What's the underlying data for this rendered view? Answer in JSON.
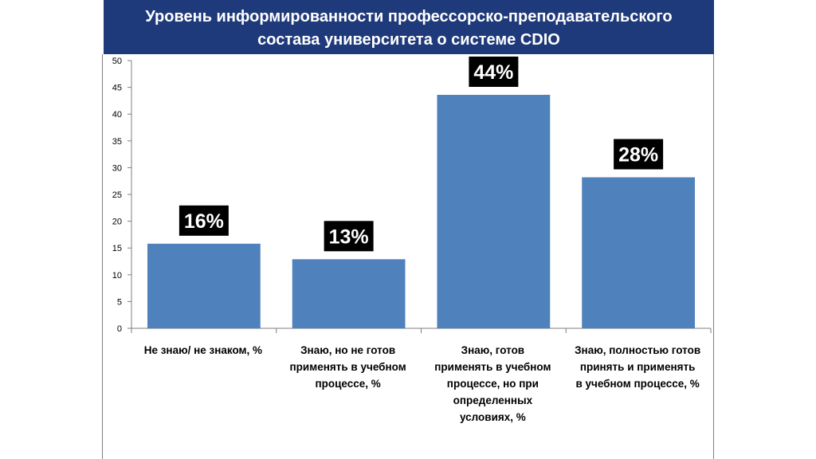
{
  "title": {
    "line1": "Уровень информированности профессорско-преподавательского",
    "line2": "состава университета о системе CDIO"
  },
  "colors": {
    "bar": "#4f81bd",
    "title_band": "#1f3a7a",
    "label_bg": "#000000",
    "label_text": "#ffffff"
  },
  "chart_data": {
    "type": "bar",
    "title": "Уровень информированности профессорско-преподавательского состава университета о системе CDIO",
    "categories": [
      "Не знаю/ не знаком, %",
      "Знаю, но не готов применять в учебном процессе, %",
      "Знаю, готов применять в учебном процессе, но при определенных условиях, %",
      "Знаю, полностью готов принять и применять в учебном процессе, %"
    ],
    "category_lines": [
      [
        "Не знаю/ не знаком, %"
      ],
      [
        "Знаю, но не готов",
        "применять в учебном",
        "процессе, %"
      ],
      [
        "Знаю, готов",
        "применять в учебном",
        "процессе, но при",
        "определенных",
        "условиях, %"
      ],
      [
        "Знаю, полностью готов",
        "принять и применять",
        "в учебном процессе, %"
      ]
    ],
    "values": [
      15.8,
      12.9,
      43.6,
      28.2
    ],
    "data_labels": [
      "16%",
      "13%",
      "44%",
      "28%"
    ],
    "ylim": [
      0,
      50
    ],
    "yticks": [
      "0",
      "5",
      "10",
      "15",
      "20",
      "25",
      "30",
      "35",
      "40",
      "45",
      "50"
    ],
    "grid": false,
    "legend": "none"
  }
}
